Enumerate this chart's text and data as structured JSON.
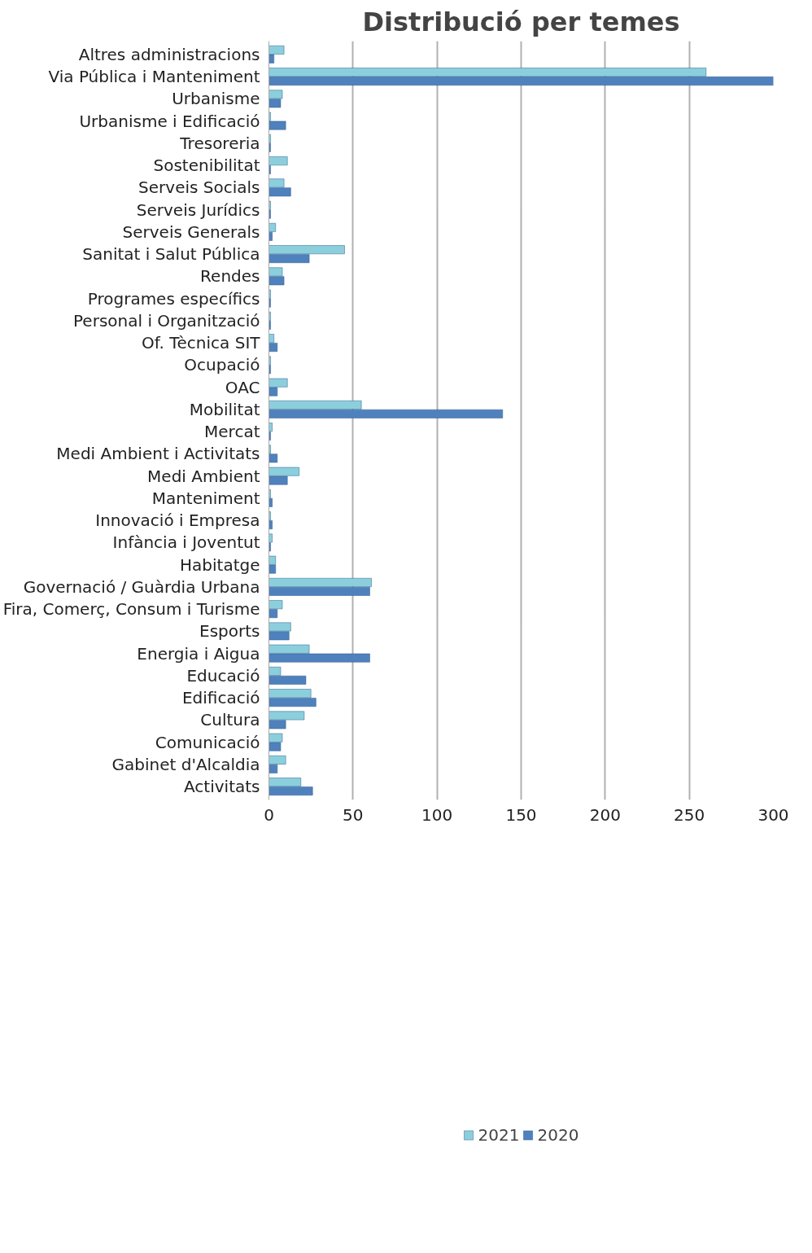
{
  "chart_data": {
    "type": "bar",
    "orientation": "horizontal",
    "title": "Distribució per temes",
    "categories": [
      "Altres administracions",
      "Via Pública i Manteniment",
      "Urbanisme",
      "Urbanisme i Edificació",
      "Tresoreria",
      "Sostenibilitat",
      "Serveis Socials",
      "Serveis Jurídics",
      "Serveis Generals",
      "Sanitat i Salut Pública",
      "Rendes",
      "Programes específics",
      "Personal i Organització",
      "Of. Tècnica SIT",
      "Ocupació",
      "OAC",
      "Mobilitat",
      "Mercat",
      "Medi Ambient i Activitats",
      "Medi Ambient",
      "Manteniment",
      "Innovació i Empresa",
      "Infància i Joventut",
      "Habitatge",
      "Governació / Guàrdia Urbana",
      "Fira, Comerç, Consum i Turisme",
      "Esports",
      "Energia i Aigua",
      "Educació",
      "Edificació",
      "Cultura",
      "Comunicació",
      "Gabinet d'Alcaldia",
      "Activitats"
    ],
    "series": [
      {
        "name": "2021",
        "color": "#8ccfdc",
        "values": [
          9,
          260,
          8,
          1,
          1,
          11,
          9,
          1,
          4,
          45,
          8,
          1,
          1,
          3,
          1,
          11,
          55,
          2,
          1,
          18,
          1,
          1,
          2,
          4,
          61,
          8,
          13,
          24,
          7,
          25,
          21,
          8,
          10,
          19
        ]
      },
      {
        "name": "2020",
        "color": "#4f81bd",
        "values": [
          3,
          300,
          7,
          10,
          1,
          1,
          13,
          1,
          2,
          24,
          9,
          1,
          1,
          5,
          1,
          5,
          139,
          1,
          5,
          11,
          2,
          2,
          1,
          4,
          60,
          5,
          12,
          60,
          22,
          28,
          10,
          7,
          5,
          26
        ]
      }
    ],
    "xlim": [
      0,
      300
    ],
    "xticks": [
      0,
      50,
      100,
      150,
      200,
      250,
      300
    ],
    "grid": "x",
    "legend": "bottom"
  }
}
